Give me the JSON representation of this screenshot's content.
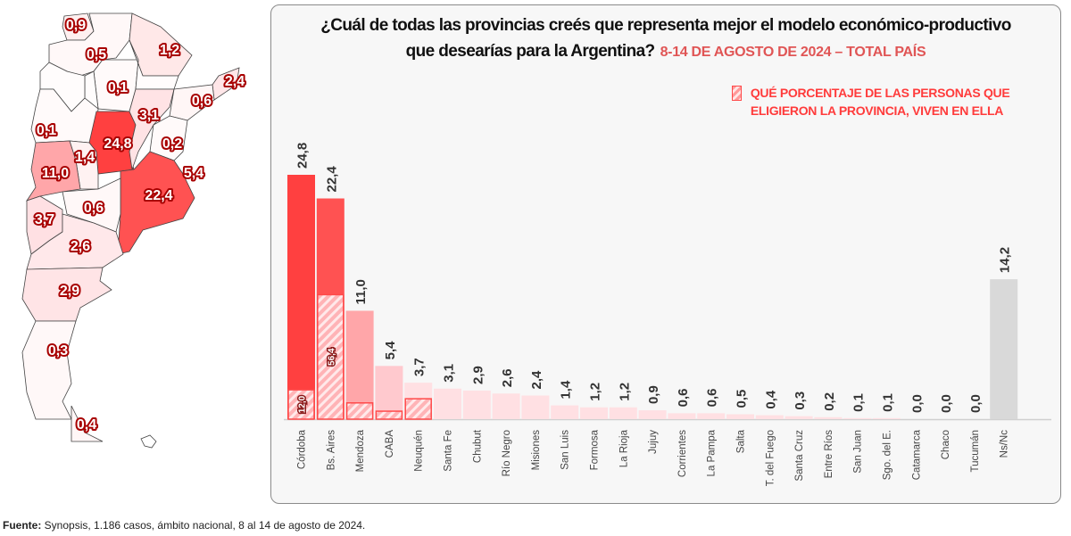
{
  "title": {
    "line1": "¿Cuál de todas las provincias creés que representa mejor el modelo económico-productivo",
    "line2": "que desearías para la Argentina?",
    "subtitle": "8-14 DE AGOSTO DE 2024 – TOTAL PAÍS"
  },
  "legend": {
    "label": "QUÉ PORCENTAJE DE LAS PERSONAS QUE ELIGIERON LA PROVINCIA, VIVEN EN ELLA",
    "pattern": "hatched"
  },
  "footer": {
    "label": "Fuente:",
    "text": " Synopsis, 1.186 casos, ámbito nacional, 8 al 14 de agosto de 2024."
  },
  "map": {
    "labels": [
      "0,9",
      "0,5",
      "1,2",
      "2,4",
      "0,1",
      "0,6",
      "3,1",
      "0,1",
      "24,8",
      "0,2",
      "1,4",
      "5,4",
      "11,0",
      "22,4",
      "0,6",
      "3,7",
      "2,6",
      "2,9",
      "0,3",
      "0,4"
    ]
  },
  "chart_data": {
    "type": "bar",
    "title": "¿Cuál de todas las provincias creés que representa mejor el modelo económico-productivo que desearías para la Argentina?",
    "subtitle": "8-14 DE AGOSTO DE 2024 – TOTAL PAÍS",
    "categories": [
      "Córdoba",
      "Bs. Aires",
      "Mendoza",
      "CABA",
      "Neuquén",
      "Santa Fe",
      "Chubut",
      "Río Negro",
      "Misiones",
      "San Luis",
      "Formosa",
      "La Rioja",
      "Jujuy",
      "Corrientes",
      "La Pampa",
      "Salta",
      "T. del Fuego",
      "Santa Cruz",
      "Entre Ríos",
      "San Juan",
      "Sgo. del E.",
      "Catamarca",
      "Chaco",
      "Tucumán",
      "Ns/Nc"
    ],
    "values": [
      24.8,
      22.4,
      11.0,
      5.4,
      3.7,
      3.1,
      2.9,
      2.6,
      2.4,
      1.4,
      1.2,
      1.2,
      0.9,
      0.6,
      0.6,
      0.5,
      0.4,
      0.3,
      0.2,
      0.1,
      0.1,
      0.0,
      0.0,
      0.0,
      14.2
    ],
    "value_labels": [
      "24,8",
      "22,4",
      "11,0",
      "5,4",
      "3,7",
      "3,1",
      "2,9",
      "2,6",
      "2,4",
      "1,4",
      "1,2",
      "1,2",
      "0,9",
      "0,6",
      "0,6",
      "0,5",
      "0,4",
      "0,3",
      "0,2",
      "0,1",
      "0,1",
      "0,0",
      "0,0",
      "0,0",
      "14,2"
    ],
    "resident_pct": [
      12.0,
      56.4,
      15,
      15,
      56,
      null,
      null,
      null,
      null,
      null,
      null,
      null,
      null,
      null,
      null,
      null,
      null,
      null,
      null,
      null,
      null,
      null,
      null,
      null,
      null
    ],
    "resident_pct_labels": [
      "12,0",
      "56,4",
      "",
      "",
      "",
      "",
      "",
      "",
      "",
      "",
      "",
      "",
      "",
      "",
      "",
      "",
      "",
      "",
      "",
      "",
      "",
      "",
      "",
      "",
      ""
    ],
    "colors": [
      "#ff4040",
      "#ff5252",
      "#ffa6a9",
      "#ffc9ce",
      "#ffe0e3",
      "#ffe0e3",
      "#ffe0e3",
      "#ffe0e3",
      "#ffe0e3",
      "#ffe0e3",
      "#ffe0e3",
      "#ffe0e3",
      "#ffe0e3",
      "#ffe0e3",
      "#ffe0e3",
      "#ffe0e3",
      "#ffe0e3",
      "#ffe0e3",
      "#ffe0e3",
      "#ffe0e3",
      "#ffe0e3",
      "#ffe0e3",
      "#ffe0e3",
      "#ffe0e3",
      "#d9d9d9"
    ],
    "ylim": [
      0,
      25
    ],
    "grid": false,
    "legend_position": "top-right"
  }
}
